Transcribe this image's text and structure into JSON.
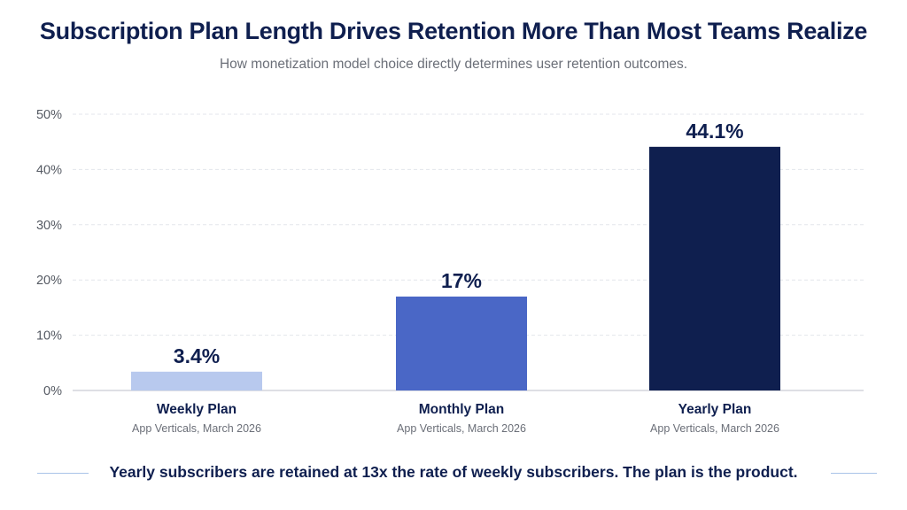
{
  "header": {
    "title": "Subscription Plan Length Drives Retention More Than Most Teams Realize",
    "subtitle": "How monetization model choice directly determines user retention outcomes."
  },
  "chart_data": {
    "type": "bar",
    "categories": [
      "Weekly Plan",
      "Monthly Plan",
      "Yearly Plan"
    ],
    "category_sublabels": [
      "App Verticals, March 2026",
      "App Verticals, March 2026",
      "App Verticals, March 2026"
    ],
    "values": [
      3.4,
      17,
      44.1
    ],
    "data_labels": [
      "3.4%",
      "17%",
      "44.1%"
    ],
    "bar_colors": [
      "#b8c9ee",
      "#4a67c6",
      "#0f1f4f"
    ],
    "ylim": [
      0,
      50
    ],
    "yticks": [
      0,
      10,
      20,
      30,
      40,
      50
    ],
    "ytick_labels": [
      "0%",
      "10%",
      "20%",
      "30%",
      "40%",
      "50%"
    ],
    "xlabel": "",
    "ylabel": "",
    "grid": true,
    "gridline_color": "#e3e6ec"
  },
  "footer": {
    "text": "Yearly subscribers are retained at 13x the rate of weekly subscribers. The plan is the product."
  },
  "colors": {
    "title": "#0f1f4f",
    "subtitle": "#6b6f78",
    "axis": "#c9ccd3",
    "tick_label": "#555a63",
    "sublabel": "#6b6f78",
    "footer_line": "#a9c4e8"
  }
}
